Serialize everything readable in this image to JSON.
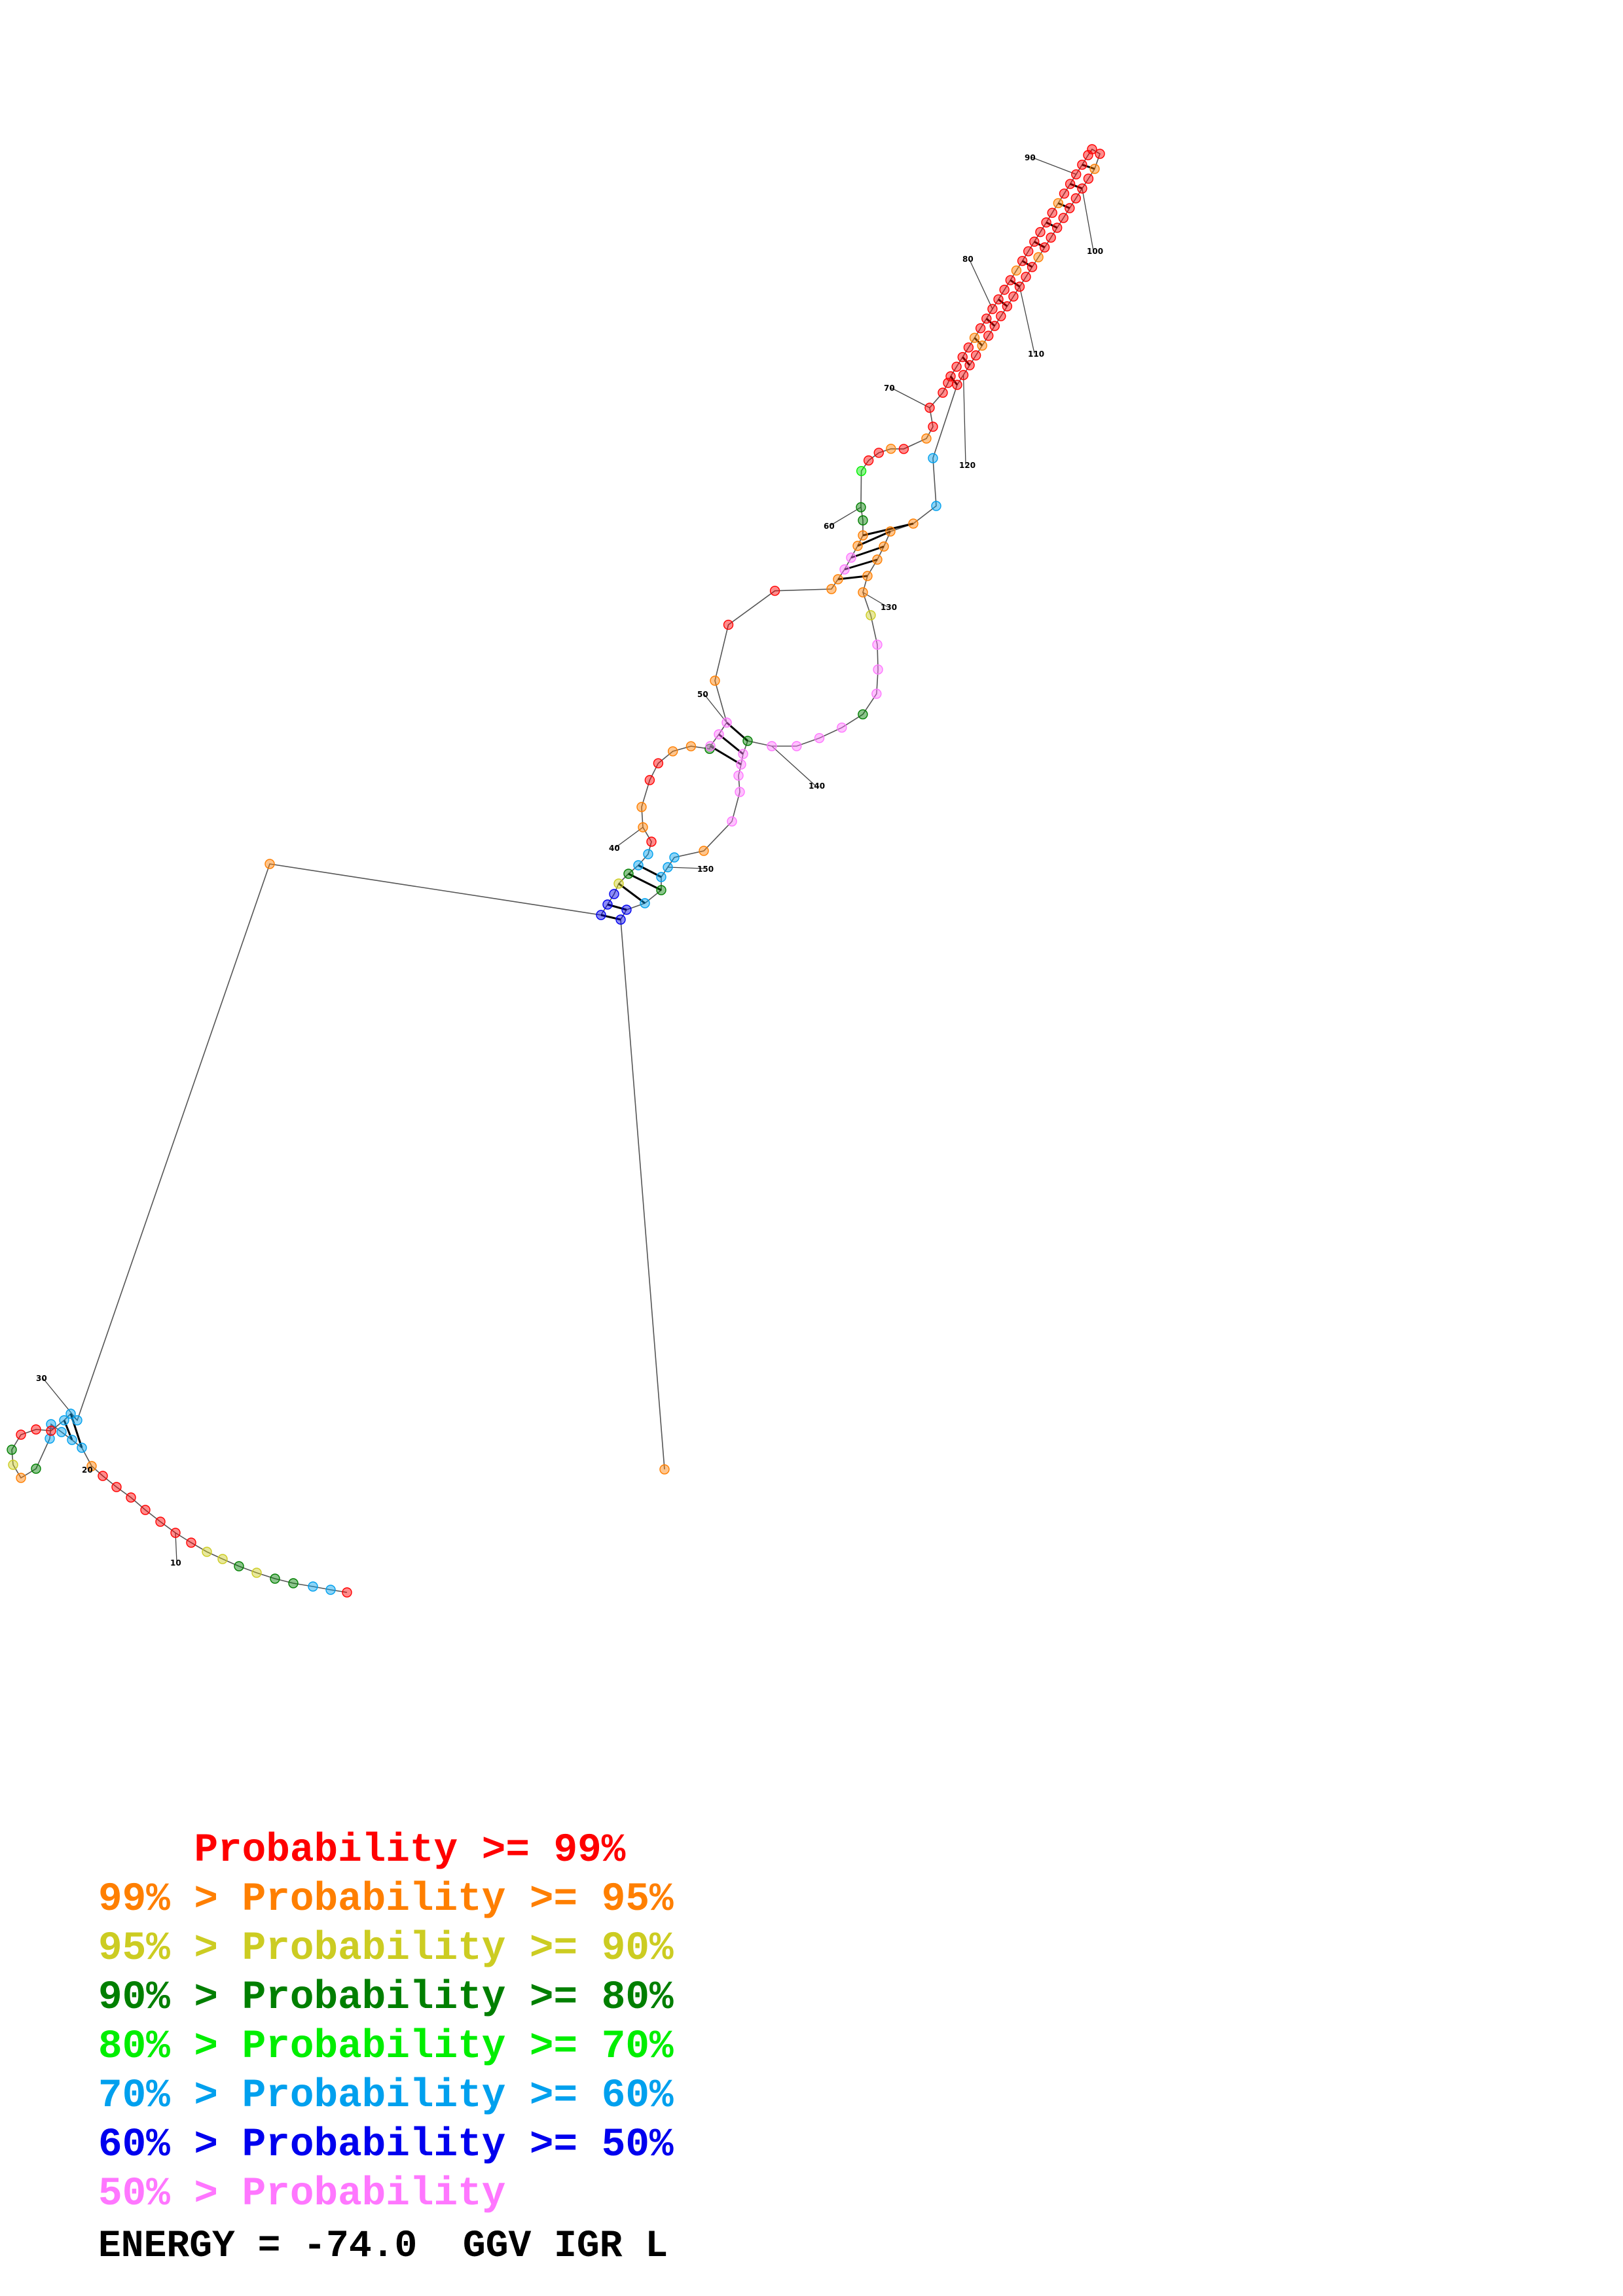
{
  "structure": {
    "palette": {
      "p99": "#ff0000",
      "p95": "#ff7f00",
      "p90": "#cccc22",
      "p80": "#007f00",
      "p70": "#00ee00",
      "p60": "#00a0ee",
      "p50": "#0000ee",
      "plow": "#ff77ff"
    },
    "position_labels": [
      "10",
      "20",
      "30",
      "40",
      "50",
      "60",
      "70",
      "80",
      "90",
      "100",
      "110",
      "120",
      "130",
      "140",
      "150"
    ]
  },
  "legend": [
    {
      "prefix": "    ",
      "range": "Probability >= 99%",
      "color": "#ff0000"
    },
    {
      "prefix": "99% > ",
      "range": "Probability >= 95%",
      "color": "#ff7f00"
    },
    {
      "prefix": "95% > ",
      "range": "Probability >= 90%",
      "color": "#cccc22"
    },
    {
      "prefix": "90% > ",
      "range": "Probability >= 80%",
      "color": "#007f00"
    },
    {
      "prefix": "80% > ",
      "range": "Probability >= 70%",
      "color": "#00ee00"
    },
    {
      "prefix": "70% > ",
      "range": "Probability >= 60%",
      "color": "#00a0ee"
    },
    {
      "prefix": "60% > ",
      "range": "Probability >= 50%",
      "color": "#0000ee"
    },
    {
      "prefix": "50% > ",
      "range": "Probability",
      "color": "#ff77ff"
    }
  ],
  "energy": "ENERGY = -74.0  GGV IGR L"
}
